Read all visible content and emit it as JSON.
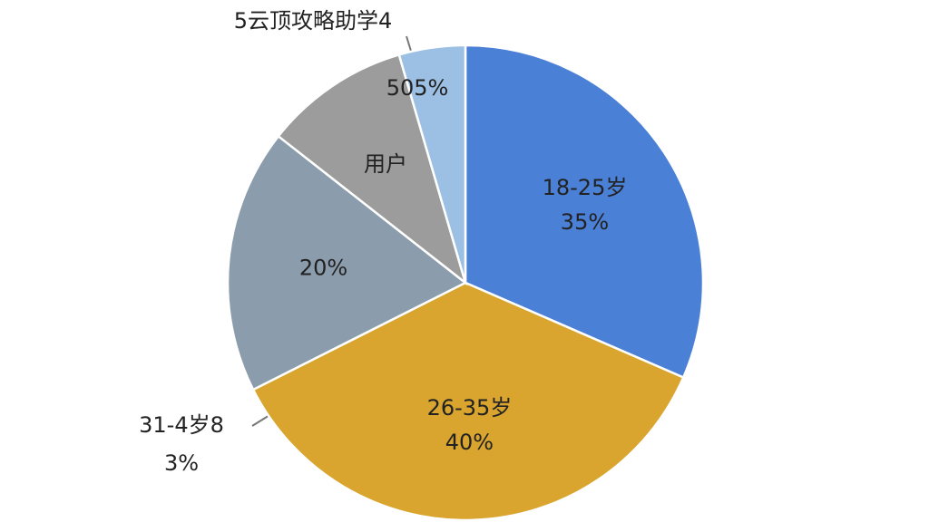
{
  "chart_data": {
    "type": "pie",
    "title": "5云顶攻略助学4",
    "categories": [
      "18-25岁",
      "26-35岁",
      null,
      "用户",
      null
    ],
    "values": [
      35,
      40,
      20,
      11,
      5
    ],
    "value_labels": [
      "35%",
      "40%",
      "20%",
      null,
      null
    ],
    "colors": [
      "#4a80d6",
      "#d9a52f",
      "#8b9cad",
      "#9c9c9c",
      "#9cc0e4"
    ],
    "annotations": [
      "505%",
      "31-4岁8",
      "3%"
    ]
  }
}
